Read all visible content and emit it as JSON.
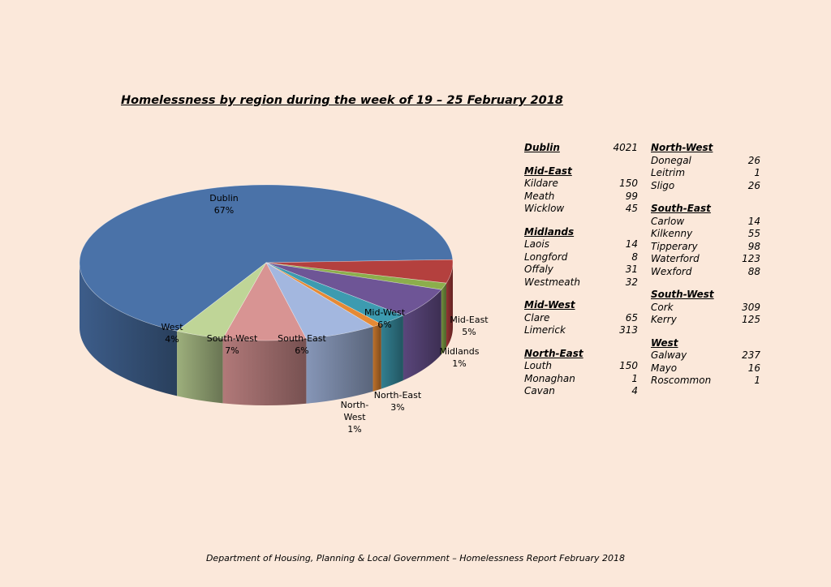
{
  "title": "Homelessness by region during the week of 19 – 25 February 2018",
  "footer": "Department of Housing, Planning & Local Government – Homelessness Report February 2018",
  "chart_data": {
    "type": "pie",
    "title": "Homelessness by region during the week of 19 – 25 February 2018",
    "slices": [
      {
        "label": [
          "Dublin"
        ],
        "value": 4021,
        "pct": "67%",
        "color": "#4a72a8"
      },
      {
        "label": [
          "Mid-East"
        ],
        "value": 294,
        "pct": "5%",
        "color": "#b4403e"
      },
      {
        "label": [
          "Midlands"
        ],
        "value": 85,
        "pct": "1%",
        "color": "#8cae4c"
      },
      {
        "label": [
          "Mid-West"
        ],
        "value": 378,
        "pct": "6%",
        "color": "#6e5596"
      },
      {
        "label": [
          "North-East"
        ],
        "value": 155,
        "pct": "3%",
        "color": "#3d9bb0"
      },
      {
        "label": [
          "North-",
          "West"
        ],
        "value": 53,
        "pct": "1%",
        "color": "#e68a35"
      },
      {
        "label": [
          "South-East"
        ],
        "value": 378,
        "pct": "6%",
        "color": "#a3b7df"
      },
      {
        "label": [
          "South-West"
        ],
        "value": 434,
        "pct": "7%",
        "color": "#d89493"
      },
      {
        "label": [
          "West"
        ],
        "value": 254,
        "pct": "4%",
        "color": "#bfd597"
      }
    ]
  },
  "table": {
    "col1": [
      {
        "name": "Dublin",
        "value": "4021",
        "rows": []
      },
      {
        "name": "Mid-East",
        "value": "",
        "rows": [
          {
            "name": "Kildare",
            "value": "150"
          },
          {
            "name": "Meath",
            "value": "99"
          },
          {
            "name": "Wicklow",
            "value": "45"
          }
        ]
      },
      {
        "name": "Midlands",
        "value": "",
        "rows": [
          {
            "name": "Laois",
            "value": "14"
          },
          {
            "name": "Longford",
            "value": "8"
          },
          {
            "name": "Offaly",
            "value": "31"
          },
          {
            "name": "Westmeath",
            "value": "32"
          }
        ]
      },
      {
        "name": "Mid-West",
        "value": "",
        "rows": [
          {
            "name": "Clare",
            "value": "65"
          },
          {
            "name": "Limerick",
            "value": "313"
          }
        ]
      },
      {
        "name": "North-East",
        "value": "",
        "rows": [
          {
            "name": "Louth",
            "value": "150"
          },
          {
            "name": "Monaghan",
            "value": "1"
          },
          {
            "name": "Cavan",
            "value": "4"
          }
        ]
      }
    ],
    "col2": [
      {
        "name": "North-West",
        "value": "",
        "rows": [
          {
            "name": "Donegal",
            "value": "26"
          },
          {
            "name": "Leitrim",
            "value": "1"
          },
          {
            "name": "Sligo",
            "value": "26"
          }
        ]
      },
      {
        "name": "South-East",
        "value": "",
        "rows": [
          {
            "name": "Carlow",
            "value": "14"
          },
          {
            "name": "Kilkenny",
            "value": "55"
          },
          {
            "name": "Tipperary",
            "value": "98"
          },
          {
            "name": "Waterford",
            "value": "123"
          },
          {
            "name": "Wexford",
            "value": "88"
          }
        ]
      },
      {
        "name": "South-West",
        "value": "",
        "rows": [
          {
            "name": "Cork",
            "value": "309"
          },
          {
            "name": "Kerry",
            "value": "125"
          }
        ]
      },
      {
        "name": "West",
        "value": "",
        "rows": [
          {
            "name": "Galway",
            "value": "237"
          },
          {
            "name": "Mayo",
            "value": "16"
          },
          {
            "name": "Roscommon",
            "value": "1"
          }
        ]
      }
    ]
  }
}
